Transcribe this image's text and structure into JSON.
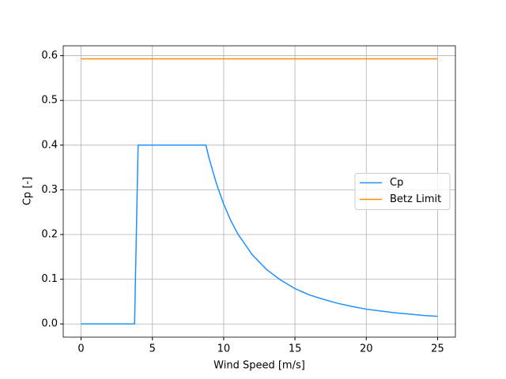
{
  "chart_data": {
    "type": "line",
    "xlabel": "Wind Speed [m/s]",
    "ylabel": "Cp [-]",
    "series": [
      {
        "name": "Cp",
        "color": "#1e90ff",
        "x": [
          0,
          1,
          2,
          3,
          3.75,
          4,
          5,
          6,
          7,
          8,
          8.75,
          9,
          9.5,
          10,
          10.5,
          11,
          12,
          13,
          14,
          15,
          16,
          17,
          18,
          19,
          20,
          21,
          22,
          23,
          24,
          25
        ],
        "values": [
          0,
          0,
          0,
          0,
          0,
          0.4,
          0.4,
          0.4,
          0.4,
          0.4,
          0.4,
          0.368,
          0.313,
          0.268,
          0.231,
          0.201,
          0.155,
          0.122,
          0.098,
          0.079,
          0.065,
          0.055,
          0.046,
          0.039,
          0.033,
          0.029,
          0.025,
          0.022,
          0.019,
          0.017
        ]
      },
      {
        "name": "Betz Limit",
        "color": "#ff8c00",
        "x": [
          0,
          25
        ],
        "values": [
          0.593,
          0.593
        ]
      }
    ],
    "xlim": [
      -1.25,
      26.25
    ],
    "ylim": [
      -0.0296,
      0.6222
    ],
    "xticks": [
      0,
      5,
      10,
      15,
      20,
      25
    ],
    "yticks": [
      {
        "value": 0,
        "label": "0.0"
      },
      {
        "value": 0.1,
        "label": "0.1"
      },
      {
        "value": 0.2,
        "label": "0.2"
      },
      {
        "value": 0.3,
        "label": "0.3"
      },
      {
        "value": 0.4,
        "label": "0.4"
      },
      {
        "value": 0.5,
        "label": "0.5"
      },
      {
        "value": 0.6,
        "label": "0.6"
      }
    ],
    "grid": true,
    "legend": "center right"
  }
}
